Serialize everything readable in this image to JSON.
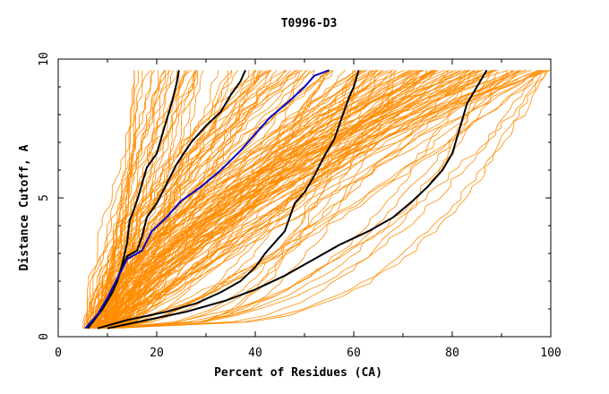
{
  "chart_data": {
    "type": "line",
    "title": "T0996-D3",
    "xlabel": "Percent of Residues (CA)",
    "ylabel": "Distance Cutoff, A",
    "xlim": [
      0,
      100
    ],
    "ylim": [
      0,
      10
    ],
    "x_ticks": [
      0,
      20,
      40,
      60,
      80,
      100
    ],
    "y_ticks": [
      0,
      5,
      10
    ],
    "x_tick_labels": [
      "0",
      "20",
      "40",
      "60",
      "80",
      "100"
    ],
    "y_tick_labels": [
      "0",
      "5",
      "10"
    ],
    "grid": false,
    "colors": {
      "background_models": "#ff8c00",
      "highlight_black": "#000000",
      "highlight_blue": "#0000cc"
    },
    "highlighted_series": [
      {
        "color": "#000000",
        "points": [
          [
            6,
            0.3
          ],
          [
            9,
            1.0
          ],
          [
            11,
            1.6
          ],
          [
            12,
            2.0
          ],
          [
            13,
            2.6
          ],
          [
            14,
            3.4
          ],
          [
            14.5,
            4.2
          ],
          [
            15,
            4.4
          ],
          [
            16,
            4.9
          ],
          [
            17,
            5.5
          ],
          [
            18,
            6.1
          ],
          [
            20,
            6.6
          ],
          [
            21,
            7.2
          ],
          [
            22,
            7.8
          ],
          [
            23,
            8.4
          ],
          [
            24,
            9.1
          ],
          [
            24.5,
            9.6
          ]
        ]
      },
      {
        "color": "#000000",
        "points": [
          [
            6,
            0.3
          ],
          [
            9,
            1.0
          ],
          [
            11,
            1.6
          ],
          [
            12.5,
            2.3
          ],
          [
            14,
            2.9
          ],
          [
            16,
            3.1
          ],
          [
            17,
            3.6
          ],
          [
            18,
            4.3
          ],
          [
            20,
            4.8
          ],
          [
            22,
            5.5
          ],
          [
            24,
            6.2
          ],
          [
            27,
            7.0
          ],
          [
            30,
            7.6
          ],
          [
            33,
            8.1
          ],
          [
            35,
            8.7
          ],
          [
            37,
            9.2
          ],
          [
            38,
            9.6
          ]
        ]
      },
      {
        "color": "#0000cc",
        "points": [
          [
            5.5,
            0.3
          ],
          [
            8,
            0.8
          ],
          [
            10,
            1.4
          ],
          [
            12,
            2.1
          ],
          [
            14,
            2.8
          ],
          [
            17,
            3.1
          ],
          [
            19,
            3.8
          ],
          [
            22,
            4.3
          ],
          [
            25,
            4.9
          ],
          [
            29,
            5.4
          ],
          [
            33,
            6.0
          ],
          [
            37,
            6.7
          ],
          [
            40,
            7.3
          ],
          [
            43,
            7.9
          ],
          [
            47,
            8.5
          ],
          [
            50,
            9.0
          ],
          [
            52,
            9.4
          ],
          [
            55,
            9.6
          ]
        ]
      },
      {
        "color": "#000000",
        "points": [
          [
            8,
            0.3
          ],
          [
            14,
            0.6
          ],
          [
            22,
            0.9
          ],
          [
            28,
            1.2
          ],
          [
            33,
            1.6
          ],
          [
            37,
            2.0
          ],
          [
            40,
            2.5
          ],
          [
            42,
            3.0
          ],
          [
            44,
            3.4
          ],
          [
            46,
            3.8
          ],
          [
            47,
            4.3
          ],
          [
            48,
            4.8
          ],
          [
            50,
            5.2
          ],
          [
            52,
            5.8
          ],
          [
            54,
            6.5
          ],
          [
            56,
            7.1
          ],
          [
            57,
            7.6
          ],
          [
            58,
            8.1
          ],
          [
            59,
            8.6
          ],
          [
            60,
            9.0
          ],
          [
            61,
            9.6
          ]
        ]
      },
      {
        "color": "#000000",
        "points": [
          [
            10,
            0.3
          ],
          [
            18,
            0.6
          ],
          [
            26,
            0.9
          ],
          [
            34,
            1.3
          ],
          [
            40,
            1.7
          ],
          [
            46,
            2.2
          ],
          [
            52,
            2.8
          ],
          [
            57,
            3.3
          ],
          [
            63,
            3.8
          ],
          [
            68,
            4.3
          ],
          [
            72,
            4.9
          ],
          [
            75,
            5.4
          ],
          [
            78,
            6.0
          ],
          [
            80,
            6.6
          ],
          [
            81,
            7.2
          ],
          [
            82,
            7.8
          ],
          [
            83,
            8.4
          ],
          [
            85,
            9.0
          ],
          [
            87,
            9.6
          ]
        ]
      }
    ]
  }
}
